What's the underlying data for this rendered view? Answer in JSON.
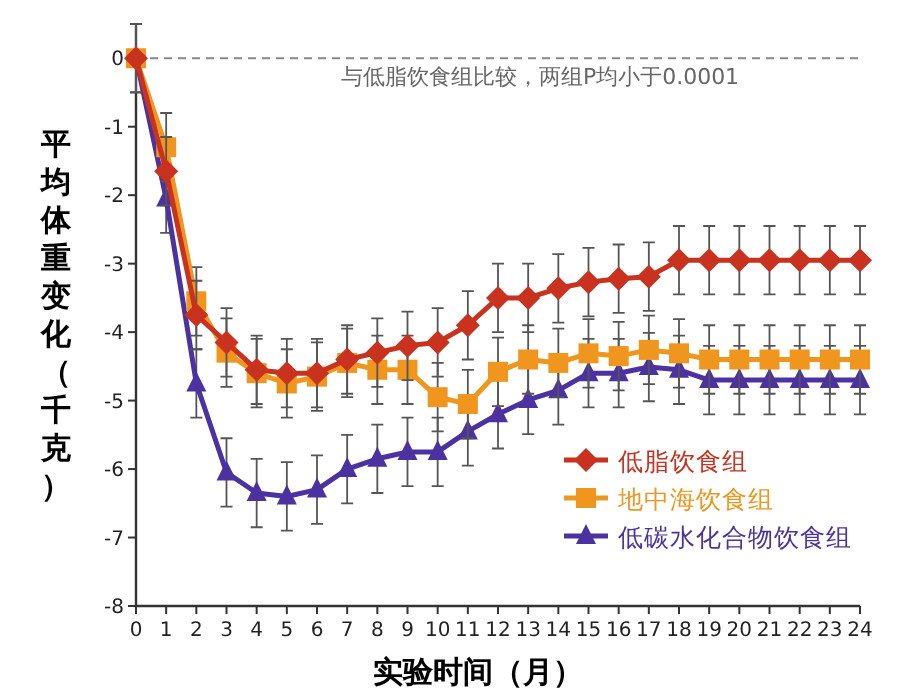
{
  "chart_data": {
    "type": "line",
    "xlabel": "实验时间（月）",
    "ylabel": "平均体重变化（千克）",
    "x": [
      0,
      1,
      2,
      3,
      4,
      5,
      6,
      7,
      8,
      9,
      10,
      11,
      12,
      13,
      14,
      15,
      16,
      17,
      18,
      19,
      20,
      21,
      22,
      23,
      24
    ],
    "xlim": [
      0,
      24
    ],
    "xticks": [
      0,
      1,
      2,
      3,
      4,
      5,
      6,
      7,
      8,
      9,
      10,
      11,
      12,
      13,
      14,
      15,
      16,
      17,
      18,
      19,
      20,
      21,
      22,
      23,
      24
    ],
    "ylim": [
      -8,
      0.5
    ],
    "yticks": [
      -8,
      -7,
      -6,
      -5,
      -4,
      -3,
      -2,
      -1,
      0
    ],
    "grid": false,
    "legend": "bottom right",
    "line_style": "solid",
    "ref_lines": [
      {
        "axis": "y",
        "value": 0,
        "color": "#888888",
        "line_style": "dashed"
      }
    ],
    "annotations": [
      "与低脂饮食组比较，两组P均小于0.0001"
    ],
    "series": [
      {
        "name": "低脂饮食组",
        "color": "#c8321e",
        "marker": "diamond",
        "values": [
          0,
          -1.65,
          -3.75,
          -4.15,
          -4.55,
          -4.6,
          -4.6,
          -4.4,
          -4.3,
          -4.2,
          -4.15,
          -3.9,
          -3.5,
          -3.5,
          -3.36,
          -3.27,
          -3.22,
          -3.19,
          -2.95,
          -2.95,
          -2.95,
          -2.95,
          -2.95,
          -2.95,
          -2.95
        ],
        "errors": [
          0.5,
          0.5,
          0.5,
          0.5,
          0.5,
          0.5,
          0.5,
          0.5,
          0.5,
          0.5,
          0.5,
          0.5,
          0.5,
          0.5,
          0.5,
          0.5,
          0.5,
          0.5,
          0.5,
          0.5,
          0.5,
          0.5,
          0.5,
          0.5,
          0.5
        ]
      },
      {
        "name": "地中海饮食组",
        "color": "#f0961e",
        "marker": "square",
        "values": [
          0,
          -1.3,
          -3.55,
          -4.3,
          -4.6,
          -4.75,
          -4.65,
          -4.45,
          -4.55,
          -4.55,
          -4.95,
          -5.05,
          -4.58,
          -4.4,
          -4.45,
          -4.31,
          -4.35,
          -4.26,
          -4.31,
          -4.4,
          -4.4,
          -4.4,
          -4.4,
          -4.4,
          -4.4
        ],
        "errors": [
          0.5,
          0.5,
          0.5,
          0.5,
          0.5,
          0.5,
          0.5,
          0.5,
          0.5,
          0.5,
          0.5,
          0.5,
          0.5,
          0.5,
          0.5,
          0.5,
          0.5,
          0.5,
          0.5,
          0.5,
          0.5,
          0.5,
          0.5,
          0.5,
          0.5
        ]
      },
      {
        "name": "低碳水化合物饮食组",
        "color": "#4b32a0",
        "marker": "triangle",
        "values": [
          0,
          -2.05,
          -4.75,
          -6.05,
          -6.35,
          -6.4,
          -6.3,
          -6.0,
          -5.85,
          -5.75,
          -5.75,
          -5.45,
          -5.2,
          -4.99,
          -4.85,
          -4.6,
          -4.6,
          -4.51,
          -4.55,
          -4.7,
          -4.7,
          -4.7,
          -4.7,
          -4.7,
          -4.7
        ],
        "errors": [
          0.5,
          0.5,
          0.5,
          0.5,
          0.5,
          0.5,
          0.5,
          0.5,
          0.5,
          0.5,
          0.5,
          0.5,
          0.5,
          0.5,
          0.5,
          0.5,
          0.5,
          0.5,
          0.5,
          0.5,
          0.5,
          0.5,
          0.5,
          0.5,
          0.5
        ]
      }
    ]
  }
}
